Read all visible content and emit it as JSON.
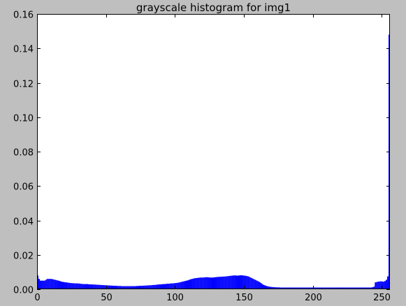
{
  "chart_data": {
    "type": "bar",
    "title": "grayscale histogram for img1",
    "xlabel": "",
    "ylabel": "",
    "xlim": [
      0,
      256
    ],
    "ylim": [
      0,
      0.16
    ],
    "xticks": [
      0,
      50,
      100,
      150,
      200,
      250
    ],
    "xtick_labels": [
      "0",
      "50",
      "100",
      "150",
      "200",
      "250"
    ],
    "yticks": [
      0,
      0.02,
      0.04,
      0.06,
      0.08,
      0.1,
      0.12,
      0.14,
      0.16
    ],
    "ytick_labels": [
      "0.00",
      "0.02",
      "0.04",
      "0.06",
      "0.08",
      "0.10",
      "0.12",
      "0.14",
      "0.16"
    ],
    "grid": false,
    "bin_width": 1,
    "color": "#0000ff",
    "values": [
      0.008,
      0.006,
      0.005,
      0.005,
      0.005,
      0.005,
      0.0055,
      0.006,
      0.006,
      0.006,
      0.006,
      0.0058,
      0.0056,
      0.0054,
      0.0052,
      0.005,
      0.0048,
      0.0045,
      0.0043,
      0.0042,
      0.004,
      0.004,
      0.0038,
      0.0037,
      0.0036,
      0.0035,
      0.0035,
      0.0034,
      0.0034,
      0.0034,
      0.0033,
      0.0032,
      0.0031,
      0.003,
      0.003,
      0.003,
      0.003,
      0.0029,
      0.0028,
      0.0028,
      0.0028,
      0.0027,
      0.0027,
      0.0026,
      0.0026,
      0.0025,
      0.0025,
      0.0024,
      0.0024,
      0.0023,
      0.0023,
      0.0022,
      0.0022,
      0.0021,
      0.0021,
      0.002,
      0.002,
      0.002,
      0.0019,
      0.0019,
      0.0019,
      0.0018,
      0.0018,
      0.0018,
      0.0018,
      0.0018,
      0.0018,
      0.0018,
      0.0018,
      0.0018,
      0.0018,
      0.0018,
      0.0019,
      0.0019,
      0.002,
      0.002,
      0.002,
      0.0021,
      0.0021,
      0.0022,
      0.0022,
      0.0023,
      0.0023,
      0.0024,
      0.0025,
      0.0025,
      0.0026,
      0.0027,
      0.0028,
      0.0028,
      0.0029,
      0.003,
      0.003,
      0.0031,
      0.0032,
      0.0032,
      0.0033,
      0.0034,
      0.0034,
      0.0035,
      0.0036,
      0.0037,
      0.0038,
      0.004,
      0.0042,
      0.0044,
      0.0046,
      0.0048,
      0.005,
      0.0052,
      0.0055,
      0.0058,
      0.006,
      0.0062,
      0.0064,
      0.0065,
      0.0066,
      0.0067,
      0.0068,
      0.0068,
      0.0068,
      0.0069,
      0.007,
      0.007,
      0.0069,
      0.0068,
      0.0068,
      0.0068,
      0.0069,
      0.007,
      0.0071,
      0.0072,
      0.0072,
      0.0073,
      0.0073,
      0.0074,
      0.0074,
      0.0075,
      0.0076,
      0.0077,
      0.0078,
      0.0079,
      0.008,
      0.008,
      0.008,
      0.0079,
      0.008,
      0.0081,
      0.0081,
      0.008,
      0.0079,
      0.0078,
      0.0076,
      0.0074,
      0.007,
      0.0066,
      0.0062,
      0.0058,
      0.0054,
      0.005,
      0.0046,
      0.0042,
      0.0036,
      0.003,
      0.0025,
      0.0022,
      0.0019,
      0.0017,
      0.0015,
      0.0014,
      0.0013,
      0.0012,
      0.0012,
      0.0011,
      0.0011,
      0.0011,
      0.001,
      0.001,
      0.001,
      0.001,
      0.001,
      0.001,
      0.001,
      0.001,
      0.001,
      0.001,
      0.001,
      0.001,
      0.001,
      0.001,
      0.001,
      0.001,
      0.001,
      0.001,
      0.001,
      0.001,
      0.001,
      0.001,
      0.001,
      0.001,
      0.001,
      0.001,
      0.001,
      0.001,
      0.001,
      0.001,
      0.001,
      0.001,
      0.001,
      0.001,
      0.001,
      0.001,
      0.001,
      0.001,
      0.001,
      0.001,
      0.001,
      0.001,
      0.001,
      0.001,
      0.001,
      0.001,
      0.001,
      0.001,
      0.001,
      0.001,
      0.001,
      0.001,
      0.001,
      0.001,
      0.001,
      0.001,
      0.001,
      0.001,
      0.001,
      0.001,
      0.001,
      0.001,
      0.001,
      0.001,
      0.001,
      0.001,
      0.001,
      0.0012,
      0.0015,
      0.004,
      0.0042,
      0.0044,
      0.0045,
      0.0046,
      0.0045,
      0.0044,
      0.0048,
      0.0055,
      0.0075,
      0.148
    ]
  }
}
